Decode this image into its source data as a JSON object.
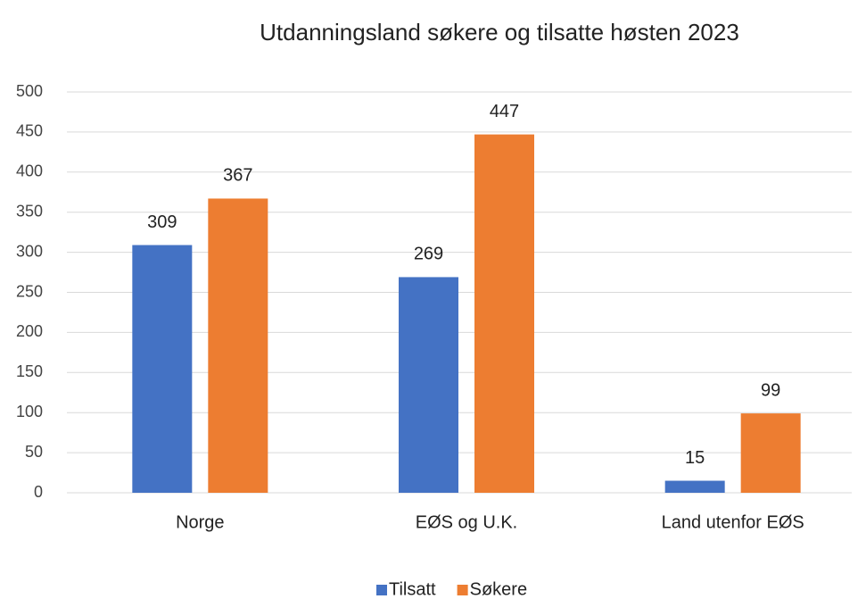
{
  "chart_data": {
    "type": "bar",
    "title": "Utdanningsland søkere og tilsatte høsten 2023",
    "categories": [
      "Norge",
      "EØS og U.K.",
      "Land utenfor EØS"
    ],
    "series": [
      {
        "name": "Tilsatt",
        "color": "#4472c4",
        "values": [
          309,
          269,
          15
        ]
      },
      {
        "name": "Søkere",
        "color": "#ed7d31",
        "values": [
          367,
          447,
          99
        ]
      }
    ],
    "ylim": [
      0,
      500
    ],
    "yticks": [
      0,
      50,
      100,
      150,
      200,
      250,
      300,
      350,
      400,
      450,
      500
    ],
    "grid": true,
    "legend": "bottom"
  }
}
